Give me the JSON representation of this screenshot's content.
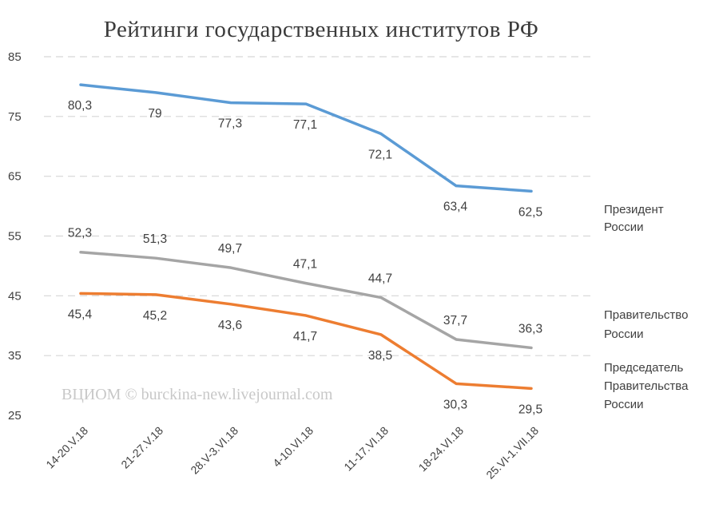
{
  "chart_data": {
    "type": "line",
    "title": "Рейтинги государственных институтов РФ",
    "categories": [
      "14-20.V.18",
      "21-27.V.18",
      "28.V-3.VI.18",
      "4-10.VI.18",
      "11-17.VI.18",
      "18-24.VI.18",
      "25.VI-1.VII.18"
    ],
    "yticks": [
      "85",
      "75",
      "65",
      "55",
      "45",
      "35",
      "25"
    ],
    "ylim": [
      25,
      85
    ],
    "grid": true,
    "legend": "right, labels next to line ends",
    "series": [
      {
        "name": "Президент России",
        "label_lines": [
          "Президент",
          "России"
        ],
        "color": "#5b9bd5",
        "values": [
          80.3,
          79,
          77.3,
          77.1,
          72.1,
          63.4,
          62.5
        ],
        "labels": [
          "80,3",
          "79",
          "77,3",
          "77,1",
          "72,1",
          "63,4",
          "62,5"
        ],
        "label_pos": "below"
      },
      {
        "name": "Правительство России",
        "label_lines": [
          "Правительство",
          "России"
        ],
        "color": "#a5a5a5",
        "values": [
          52.3,
          51.3,
          49.7,
          47.1,
          44.7,
          37.7,
          36.3
        ],
        "labels": [
          "52,3",
          "51,3",
          "49,7",
          "47,1",
          "44,7",
          "37,7",
          "36,3"
        ],
        "label_pos": "above"
      },
      {
        "name": "Председатель Правительства России",
        "label_lines": [
          "Председатель",
          "Правительства",
          "России"
        ],
        "color": "#ed7d31",
        "values": [
          45.4,
          45.2,
          43.6,
          41.7,
          38.5,
          30.3,
          29.5
        ],
        "labels": [
          "45,4",
          "45,2",
          "43,6",
          "41,7",
          "38,5",
          "30,3",
          "29,5"
        ],
        "label_pos": "below"
      }
    ],
    "watermark": "ВЦИОМ © burckina-new.livejournal.com"
  }
}
